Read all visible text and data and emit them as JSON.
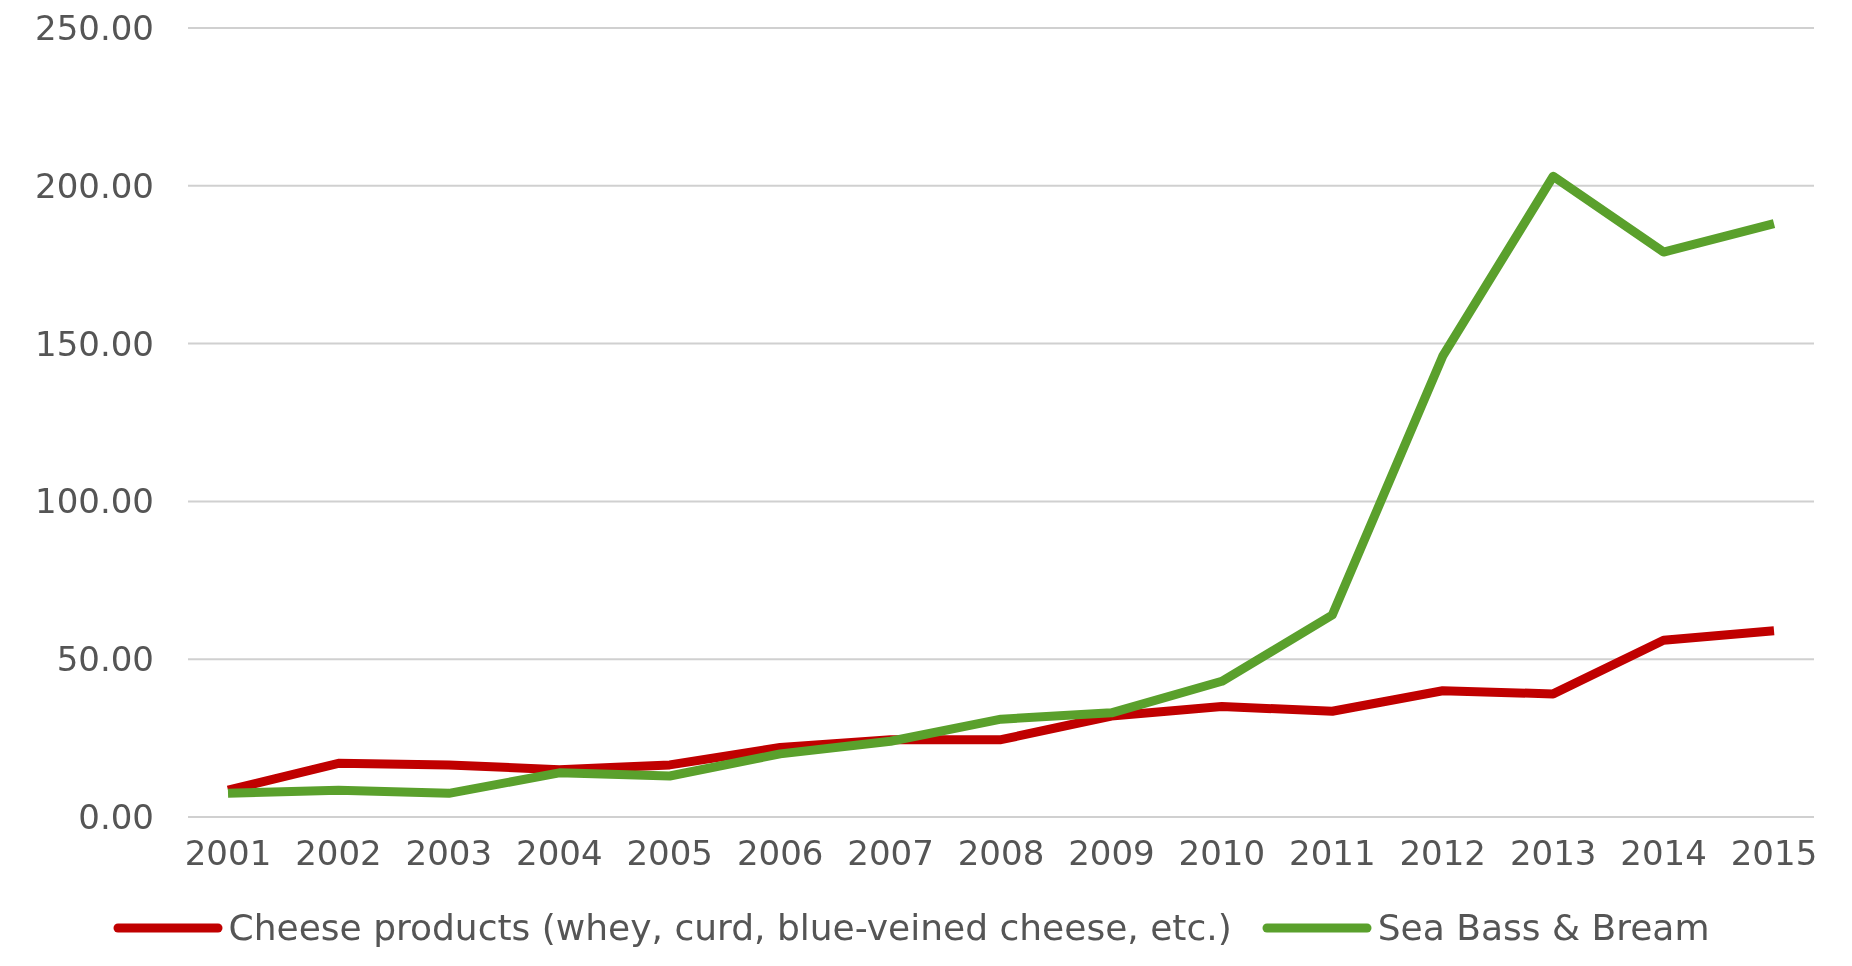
{
  "chart_data": {
    "type": "line",
    "categories": [
      "2001",
      "2002",
      "2003",
      "2004",
      "2005",
      "2006",
      "2007",
      "2008",
      "2009",
      "2010",
      "2011",
      "2012",
      "2013",
      "2014",
      "2015"
    ],
    "series": [
      {
        "name": "Cheese products (whey, curd, blue-veined cheese, etc.)",
        "color": "#c00000",
        "values": [
          8.5,
          17,
          16.5,
          15,
          16.5,
          22,
          24.5,
          24.5,
          32,
          35,
          33.5,
          40,
          39,
          56,
          59
        ]
      },
      {
        "name": "Sea Bass & Bream",
        "color": "#5aa02c",
        "values": [
          7.5,
          8.5,
          7.5,
          14,
          13,
          20,
          24,
          31,
          33,
          43,
          64,
          146,
          203,
          179,
          188
        ]
      }
    ],
    "ylim": [
      0,
      250
    ],
    "yticks": [
      {
        "value": 0,
        "label": "0.00"
      },
      {
        "value": 50,
        "label": "50.00"
      },
      {
        "value": 100,
        "label": "100.00"
      },
      {
        "value": 150,
        "label": "150.00"
      },
      {
        "value": 200,
        "label": "200.00"
      },
      {
        "value": 250,
        "label": "250.00"
      }
    ],
    "grid": "y",
    "legend": "bottom",
    "marker": "none",
    "line_style": "solid"
  }
}
